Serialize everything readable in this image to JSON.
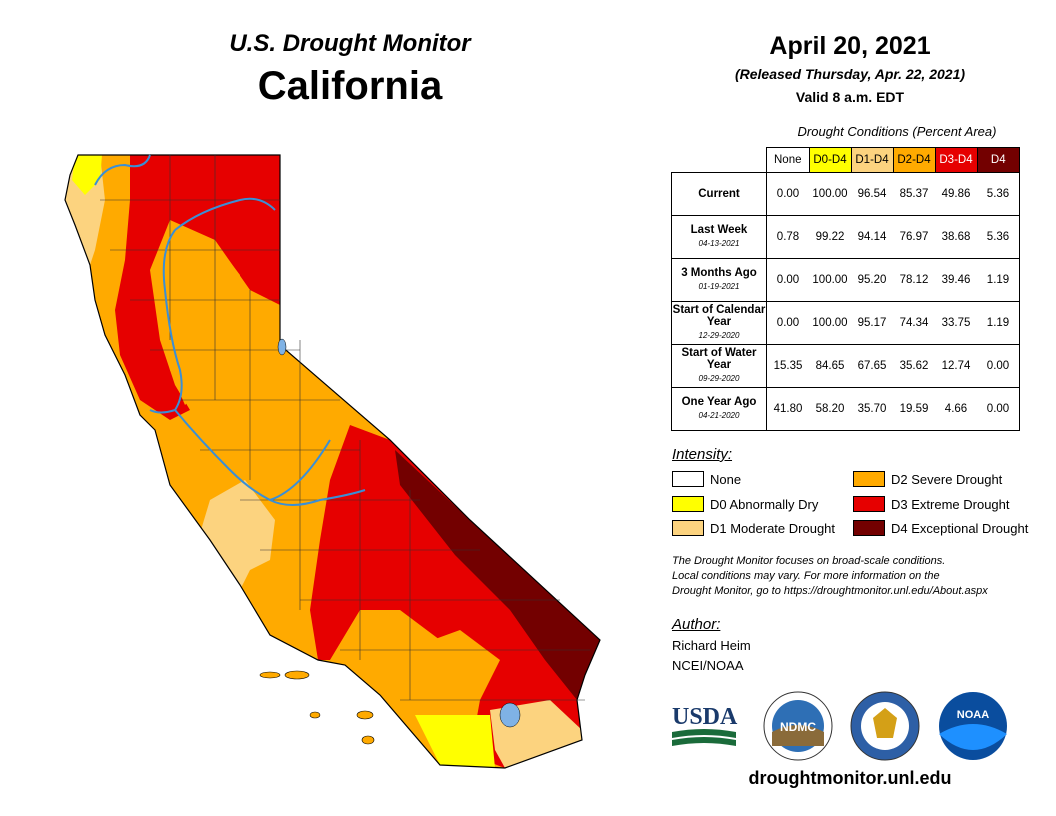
{
  "header": {
    "monitor_title": "U.S. Drought Monitor",
    "state": "California"
  },
  "date_block": {
    "date": "April 20, 2021",
    "released": "(Released Thursday, Apr. 22, 2021)",
    "valid": "Valid 8 a.m. EDT"
  },
  "table": {
    "caption": "Drought Conditions (Percent Area)",
    "columns": [
      {
        "label": "None",
        "color": "#ffffff",
        "text_color": "#000000"
      },
      {
        "label": "D0-D4",
        "color": "#ffff00",
        "text_color": "#000000"
      },
      {
        "label": "D1-D4",
        "color": "#fcd37f",
        "text_color": "#000000"
      },
      {
        "label": "D2-D4",
        "color": "#ffaa00",
        "text_color": "#000000"
      },
      {
        "label": "D3-D4",
        "color": "#e60000",
        "text_color": "#ffffff"
      },
      {
        "label": "D4",
        "color": "#730000",
        "text_color": "#ffffff"
      }
    ],
    "rows": [
      {
        "label": "Current",
        "date": "",
        "values": [
          "0.00",
          "100.00",
          "96.54",
          "85.37",
          "49.86",
          "5.36"
        ]
      },
      {
        "label": "Last Week",
        "date": "04-13-2021",
        "values": [
          "0.78",
          "99.22",
          "94.14",
          "76.97",
          "38.68",
          "5.36"
        ]
      },
      {
        "label": "3 Months Ago",
        "date": "01-19-2021",
        "values": [
          "0.00",
          "100.00",
          "95.20",
          "78.12",
          "39.46",
          "1.19"
        ]
      },
      {
        "label": "Start of Calendar Year",
        "date": "12-29-2020",
        "values": [
          "0.00",
          "100.00",
          "95.17",
          "74.34",
          "33.75",
          "1.19"
        ]
      },
      {
        "label": "Start of Water Year",
        "date": "09-29-2020",
        "values": [
          "15.35",
          "84.65",
          "67.65",
          "35.62",
          "12.74",
          "0.00"
        ]
      },
      {
        "label": "One Year Ago",
        "date": "04-21-2020",
        "values": [
          "41.80",
          "58.20",
          "35.70",
          "19.59",
          "4.66",
          "0.00"
        ]
      }
    ]
  },
  "legend": {
    "heading": "Intensity:",
    "items": [
      {
        "label": "None",
        "color": "#ffffff"
      },
      {
        "label": "D0 Abnormally Dry",
        "color": "#ffff00"
      },
      {
        "label": "D1 Moderate Drought",
        "color": "#fcd37f"
      },
      {
        "label": "D2 Severe Drought",
        "color": "#ffaa00"
      },
      {
        "label": "D3 Extreme Drought",
        "color": "#e60000"
      },
      {
        "label": "D4 Exceptional Drought",
        "color": "#730000"
      }
    ]
  },
  "note": {
    "line1": "The Drought Monitor focuses on broad-scale conditions.",
    "line2": "Local conditions may vary. For more information on the",
    "line3": "Drought Monitor, go to https://droughtmonitor.unl.edu/About.aspx"
  },
  "author": {
    "heading": "Author:",
    "name": "Richard Heim",
    "org": "NCEI/NOAA"
  },
  "logos": {
    "usda": "USDA",
    "ndmc": "NDMC",
    "noaa": "NOAA"
  },
  "website": "droughtmonitor.unl.edu",
  "map_colors": {
    "d0": "#ffff00",
    "d1": "#fcd37f",
    "d2": "#ffaa00",
    "d3": "#e60000",
    "d4": "#730000",
    "water": "#7fb2e5",
    "river": "#3a8fd6"
  }
}
